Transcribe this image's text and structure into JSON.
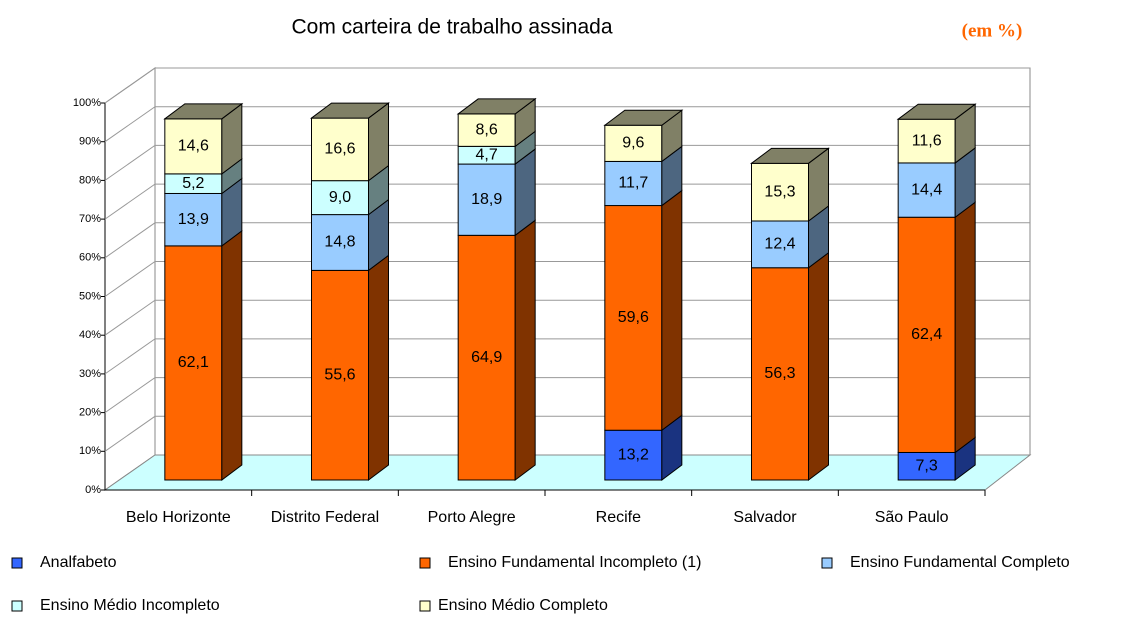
{
  "chart_data": {
    "type": "bar",
    "stacked": true,
    "title": "Com carteira de trabalho assinada",
    "unit_note": "(em %)",
    "categories": [
      "Belo Horizonte",
      "Distrito Federal",
      "Porto Alegre",
      "Recife",
      "Salvador",
      "São Paulo"
    ],
    "series": [
      {
        "name": "Analfabeto",
        "color": "#3366ff",
        "values": [
          null,
          null,
          null,
          13.2,
          null,
          7.3
        ],
        "value_labels": [
          null,
          null,
          null,
          "13,2",
          null,
          "7,3"
        ]
      },
      {
        "name": "Ensino Fundamental Incompleto (1)",
        "color": "#ff6600",
        "values": [
          62.1,
          55.6,
          64.9,
          59.6,
          56.3,
          62.4
        ],
        "value_labels": [
          "62,1",
          "55,6",
          "64,9",
          "59,6",
          "56,3",
          "62,4"
        ]
      },
      {
        "name": "Ensino Fundamental Completo",
        "color": "#99ccff",
        "values": [
          13.9,
          14.8,
          18.9,
          11.7,
          12.4,
          14.4
        ],
        "value_labels": [
          "13,9",
          "14,8",
          "18,9",
          "11,7",
          "12,4",
          "14,4"
        ]
      },
      {
        "name": "Ensino Médio Incompleto",
        "color": "#ccffff",
        "values": [
          5.2,
          9.0,
          4.7,
          null,
          null,
          null
        ],
        "value_labels": [
          "5,2",
          "9,0",
          "4,7",
          null,
          null,
          null
        ]
      },
      {
        "name": "Ensino Médio Completo",
        "color": "#ffffcc",
        "values": [
          14.6,
          16.6,
          8.6,
          9.6,
          15.3,
          11.6
        ],
        "value_labels": [
          "14,6",
          "16,6",
          "8,6",
          "9,6",
          "15,3",
          "11,6"
        ]
      }
    ],
    "ylim": [
      0,
      100
    ],
    "yticks": [
      {
        "value": 0,
        "label": "0%"
      },
      {
        "value": 10,
        "label": "10%"
      },
      {
        "value": 20,
        "label": "20%"
      },
      {
        "value": 30,
        "label": "30%"
      },
      {
        "value": 40,
        "label": "40%"
      },
      {
        "value": 50,
        "label": "50%"
      },
      {
        "value": 60,
        "label": "60%"
      },
      {
        "value": 70,
        "label": "70%"
      },
      {
        "value": 80,
        "label": "80%"
      },
      {
        "value": 90,
        "label": "90%"
      },
      {
        "value": 100,
        "label": "100%"
      }
    ]
  }
}
